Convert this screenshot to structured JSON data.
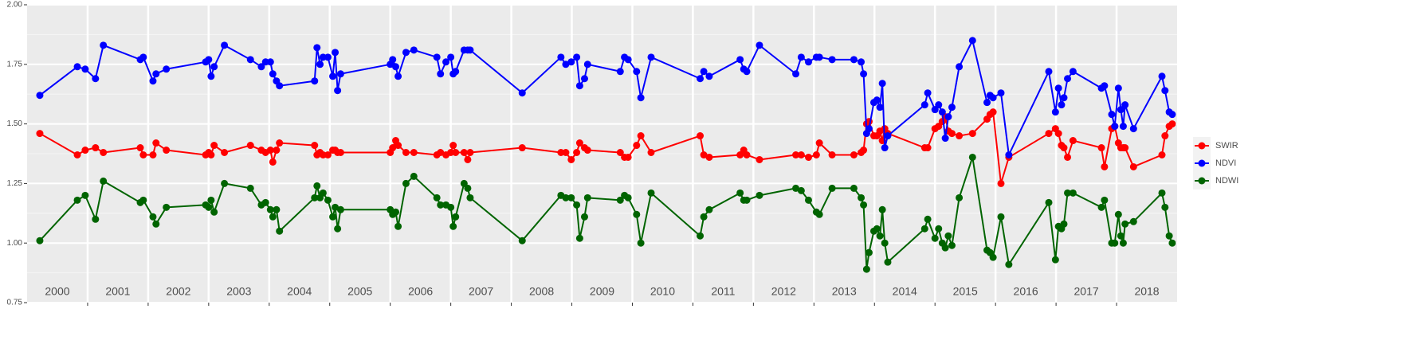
{
  "chart_data": {
    "type": "line",
    "x": [
      2000.21,
      2000.83,
      2000.96,
      2001.13,
      2001.26,
      2001.87,
      2001.92,
      2002.08,
      2002.13,
      2002.3,
      2002.95,
      2003.0,
      2003.04,
      2003.09,
      2003.26,
      2003.69,
      2003.87,
      2003.94,
      2004.02,
      2004.06,
      2004.12,
      2004.17,
      2004.75,
      2004.79,
      2004.84,
      2004.89,
      2004.97,
      2005.05,
      2005.09,
      2005.13,
      2005.18,
      2006.0,
      2006.04,
      2006.09,
      2006.13,
      2006.26,
      2006.39,
      2006.77,
      2006.83,
      2006.92,
      2007.0,
      2007.04,
      2007.08,
      2007.22,
      2007.28,
      2007.32,
      2008.18,
      2008.82,
      2008.9,
      2008.99,
      2009.08,
      2009.13,
      2009.21,
      2009.26,
      2009.8,
      2009.87,
      2009.93,
      2010.07,
      2010.14,
      2010.31,
      2011.12,
      2011.18,
      2011.27,
      2011.78,
      2011.84,
      2011.89,
      2012.1,
      2012.7,
      2012.79,
      2012.91,
      2013.04,
      2013.09,
      2013.3,
      2013.66,
      2013.78,
      2013.82,
      2013.87,
      2013.91,
      2013.99,
      2014.04,
      2014.09,
      2014.13,
      2014.17,
      2014.22,
      2014.83,
      2014.88,
      2015.0,
      2015.06,
      2015.12,
      2015.17,
      2015.22,
      2015.28,
      2015.4,
      2015.62,
      2015.86,
      2015.91,
      2015.96,
      2016.09,
      2016.22,
      2016.88,
      2016.99,
      2017.04,
      2017.09,
      2017.13,
      2017.19,
      2017.28,
      2017.75,
      2017.8,
      2017.92,
      2017.97,
      2018.03,
      2018.07,
      2018.11,
      2018.14,
      2018.28,
      2018.75,
      2018.8,
      2018.87,
      2018.92
    ],
    "series": [
      {
        "name": "SWIR",
        "color": "#ff0000",
        "values": [
          1.46,
          1.37,
          1.39,
          1.4,
          1.38,
          1.4,
          1.37,
          1.37,
          1.42,
          1.39,
          1.37,
          1.38,
          1.37,
          1.41,
          1.38,
          1.41,
          1.39,
          1.38,
          1.39,
          1.34,
          1.39,
          1.42,
          1.41,
          1.37,
          1.38,
          1.37,
          1.37,
          1.39,
          1.39,
          1.38,
          1.38,
          1.38,
          1.4,
          1.43,
          1.41,
          1.38,
          1.38,
          1.37,
          1.38,
          1.37,
          1.38,
          1.41,
          1.38,
          1.38,
          1.35,
          1.38,
          1.4,
          1.38,
          1.38,
          1.35,
          1.38,
          1.42,
          1.4,
          1.39,
          1.38,
          1.36,
          1.36,
          1.41,
          1.45,
          1.38,
          1.45,
          1.37,
          1.36,
          1.37,
          1.39,
          1.37,
          1.35,
          1.37,
          1.37,
          1.36,
          1.37,
          1.42,
          1.37,
          1.37,
          1.38,
          1.39,
          1.5,
          1.51,
          1.45,
          1.45,
          1.47,
          1.43,
          1.48,
          1.46,
          1.4,
          1.4,
          1.48,
          1.49,
          1.51,
          1.53,
          1.47,
          1.46,
          1.45,
          1.46,
          1.52,
          1.54,
          1.55,
          1.25,
          1.36,
          1.46,
          1.48,
          1.46,
          1.41,
          1.4,
          1.36,
          1.43,
          1.4,
          1.32,
          1.48,
          1.49,
          1.42,
          1.4,
          1.4,
          1.4,
          1.32,
          1.37,
          1.45,
          1.49,
          1.5
        ]
      },
      {
        "name": "NDVI",
        "color": "#0000ff",
        "values": [
          1.62,
          1.74,
          1.73,
          1.69,
          1.83,
          1.77,
          1.78,
          1.68,
          1.71,
          1.73,
          1.76,
          1.77,
          1.7,
          1.74,
          1.83,
          1.77,
          1.74,
          1.76,
          1.76,
          1.71,
          1.68,
          1.66,
          1.68,
          1.82,
          1.75,
          1.78,
          1.78,
          1.7,
          1.8,
          1.64,
          1.71,
          1.75,
          1.77,
          1.74,
          1.7,
          1.8,
          1.81,
          1.78,
          1.71,
          1.76,
          1.78,
          1.71,
          1.72,
          1.81,
          1.81,
          1.81,
          1.63,
          1.78,
          1.75,
          1.76,
          1.78,
          1.66,
          1.69,
          1.75,
          1.72,
          1.78,
          1.77,
          1.72,
          1.61,
          1.78,
          1.69,
          1.72,
          1.7,
          1.77,
          1.73,
          1.72,
          1.83,
          1.71,
          1.78,
          1.76,
          1.78,
          1.78,
          1.77,
          1.77,
          1.76,
          1.71,
          1.46,
          1.48,
          1.59,
          1.6,
          1.57,
          1.67,
          1.4,
          1.45,
          1.58,
          1.63,
          1.56,
          1.58,
          1.55,
          1.44,
          1.53,
          1.57,
          1.74,
          1.85,
          1.59,
          1.62,
          1.61,
          1.63,
          1.37,
          1.72,
          1.55,
          1.65,
          1.58,
          1.61,
          1.69,
          1.72,
          1.65,
          1.66,
          1.54,
          1.49,
          1.65,
          1.56,
          1.49,
          1.58,
          1.48,
          1.7,
          1.64,
          1.55,
          1.54
        ]
      },
      {
        "name": "NDWI",
        "color": "#006400",
        "values": [
          1.01,
          1.18,
          1.2,
          1.1,
          1.26,
          1.17,
          1.18,
          1.11,
          1.08,
          1.15,
          1.16,
          1.15,
          1.18,
          1.13,
          1.25,
          1.23,
          1.16,
          1.17,
          1.14,
          1.11,
          1.14,
          1.05,
          1.19,
          1.24,
          1.19,
          1.21,
          1.18,
          1.11,
          1.15,
          1.06,
          1.14,
          1.14,
          1.12,
          1.13,
          1.07,
          1.25,
          1.28,
          1.19,
          1.16,
          1.16,
          1.15,
          1.07,
          1.11,
          1.25,
          1.23,
          1.19,
          1.01,
          1.2,
          1.19,
          1.19,
          1.16,
          1.02,
          1.11,
          1.19,
          1.18,
          1.2,
          1.19,
          1.12,
          1.0,
          1.21,
          1.03,
          1.11,
          1.14,
          1.21,
          1.18,
          1.18,
          1.2,
          1.23,
          1.22,
          1.18,
          1.13,
          1.12,
          1.23,
          1.23,
          1.19,
          1.16,
          0.89,
          0.96,
          1.05,
          1.06,
          1.03,
          1.14,
          1.0,
          0.92,
          1.06,
          1.1,
          1.02,
          1.06,
          1.0,
          0.98,
          1.03,
          0.99,
          1.19,
          1.36,
          0.97,
          0.96,
          0.94,
          1.11,
          0.91,
          1.17,
          0.93,
          1.07,
          1.06,
          1.08,
          1.21,
          1.21,
          1.15,
          1.18,
          1.0,
          1.0,
          1.12,
          1.03,
          1.0,
          1.08,
          1.09,
          1.21,
          1.15,
          1.03,
          1.0
        ]
      }
    ],
    "xlim": [
      2000,
      2019
    ],
    "xgrid": [
      2001,
      2002,
      2003,
      2004,
      2005,
      2006,
      2007,
      2008,
      2009,
      2010,
      2011,
      2012,
      2013,
      2014,
      2015,
      2016,
      2017,
      2018
    ],
    "annotations": [
      {
        "x": 2000.5,
        "text": "2000"
      },
      {
        "x": 2001.5,
        "text": "2001"
      },
      {
        "x": 2002.5,
        "text": "2002"
      },
      {
        "x": 2003.5,
        "text": "2003"
      },
      {
        "x": 2004.5,
        "text": "2004"
      },
      {
        "x": 2005.5,
        "text": "2005"
      },
      {
        "x": 2006.5,
        "text": "2006"
      },
      {
        "x": 2007.5,
        "text": "2007"
      },
      {
        "x": 2008.5,
        "text": "2008"
      },
      {
        "x": 2009.5,
        "text": "2009"
      },
      {
        "x": 2010.5,
        "text": "2010"
      },
      {
        "x": 2011.5,
        "text": "2011"
      },
      {
        "x": 2012.5,
        "text": "2012"
      },
      {
        "x": 2013.5,
        "text": "2013"
      },
      {
        "x": 2014.5,
        "text": "2014"
      },
      {
        "x": 2015.5,
        "text": "2015"
      },
      {
        "x": 2016.5,
        "text": "2016"
      },
      {
        "x": 2017.5,
        "text": "2017"
      },
      {
        "x": 2018.5,
        "text": "2018"
      }
    ],
    "ylim": [
      0.75,
      2.0
    ],
    "yticks": [
      0.75,
      {
        "value": 1,
        "label": "1.00"
      },
      1.25,
      {
        "value": 1.5,
        "label": "1.50"
      },
      1.75,
      {
        "value": 2,
        "label": "2.00"
      }
    ],
    "grid": true,
    "legend": "right"
  }
}
